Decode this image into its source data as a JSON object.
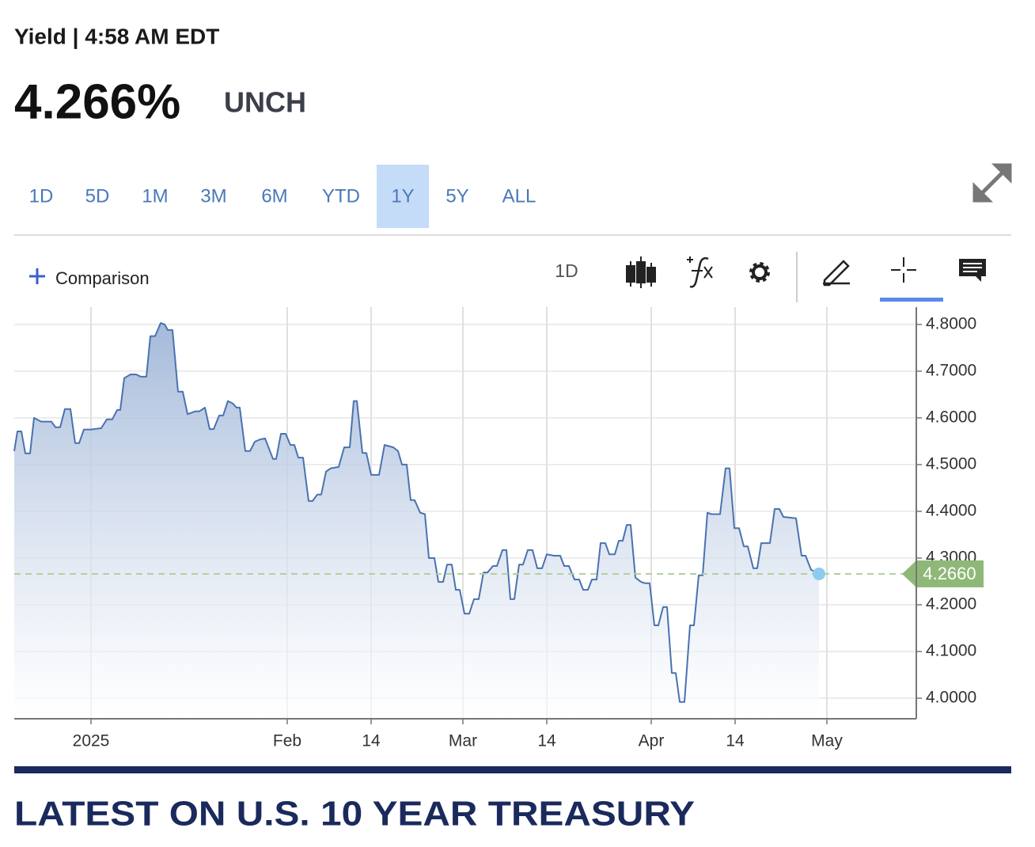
{
  "header": {
    "title": "Yield | 4:58 AM EDT",
    "price": "4.266%",
    "change": "UNCH"
  },
  "tabs": {
    "items": [
      "1D",
      "5D",
      "1M",
      "3M",
      "6M",
      "YTD",
      "1Y",
      "5Y",
      "ALL"
    ],
    "active": 6
  },
  "toolbar": {
    "comparison": "Comparison",
    "interval": "1D"
  },
  "section": {
    "heading": "LATEST ON U.S. 10 YEAR TREASURY"
  },
  "chart_data": {
    "type": "line",
    "color": "#4a72b0",
    "grid": true,
    "xlim": [
      0,
      114
    ],
    "xticks": [
      {
        "value": 9.7,
        "label": "2025"
      },
      {
        "value": 34.5,
        "label": "Feb"
      },
      {
        "value": 45.1,
        "label": "14"
      },
      {
        "value": 56.7,
        "label": "Mar"
      },
      {
        "value": 67.3,
        "label": "14"
      },
      {
        "value": 80.5,
        "label": "Apr"
      },
      {
        "value": 91.1,
        "label": "14"
      },
      {
        "value": 102.7,
        "label": "May"
      }
    ],
    "ylim": [
      3.956,
      4.837
    ],
    "yticks": [
      {
        "value": 4.0,
        "label": "4.0000"
      },
      {
        "value": 4.1,
        "label": "4.1000"
      },
      {
        "value": 4.2,
        "label": "4.2000"
      },
      {
        "value": 4.3,
        "label": "4.3000"
      },
      {
        "value": 4.4,
        "label": "4.4000"
      },
      {
        "value": 4.5,
        "label": "4.5000"
      },
      {
        "value": 4.6,
        "label": "4.6000"
      },
      {
        "value": 4.7,
        "label": "4.7000"
      },
      {
        "value": 4.8,
        "label": "4.8000"
      }
    ],
    "reference_line": {
      "value": 4.266,
      "label": "4.2660"
    },
    "x": [
      0,
      0.4,
      0.9,
      1.4,
      2.0,
      2.5,
      3.4,
      4.7,
      5.2,
      5.8,
      6.4,
      7.1,
      7.7,
      8.2,
      8.8,
      9.7,
      11.0,
      11.7,
      12.4,
      13.0,
      13.4,
      13.9,
      14.7,
      15.4,
      16.0,
      16.7,
      17.2,
      17.8,
      18.5,
      19.0,
      19.4,
      20.0,
      20.7,
      21.3,
      21.9,
      22.9,
      23.4,
      24.1,
      24.7,
      25.2,
      25.9,
      26.4,
      27.0,
      27.6,
      28.1,
      28.5,
      29.2,
      29.8,
      30.4,
      31.1,
      31.7,
      32.7,
      33.1,
      33.7,
      34.3,
      34.9,
      35.4,
      35.9,
      36.5,
      37.2,
      37.7,
      38.3,
      38.8,
      39.4,
      40.0,
      41.0,
      41.7,
      42.4,
      42.9,
      43.3,
      44.0,
      44.5,
      45.1,
      46.1,
      46.8,
      47.9,
      48.5,
      49.0,
      49.6,
      50.1,
      50.6,
      51.3,
      51.9,
      52.4,
      53.1,
      53.6,
      54.2,
      54.7,
      55.3,
      55.8,
      56.3,
      56.9,
      57.5,
      58.1,
      58.7,
      59.3,
      59.8,
      60.5,
      61.0,
      61.7,
      62.2,
      62.7,
      63.2,
      63.8,
      64.3,
      64.9,
      65.5,
      66.1,
      66.7,
      67.3,
      68.2,
      69.0,
      69.5,
      70.1,
      70.8,
      71.4,
      71.9,
      72.5,
      73.0,
      73.6,
      74.1,
      74.7,
      75.2,
      75.9,
      76.4,
      76.9,
      77.4,
      77.9,
      78.5,
      79.2,
      79.7,
      80.3,
      80.9,
      81.4,
      82.0,
      82.5,
      83.1,
      83.6,
      84.1,
      84.7,
      85.4,
      85.9,
      86.5,
      87.0,
      87.6,
      88.1,
      89.2,
      89.9,
      90.4,
      91.0,
      91.6,
      92.2,
      92.7,
      93.4,
      93.9,
      94.4,
      95.5,
      96.1,
      96.7,
      97.2,
      98.8,
      99.5,
      100.0,
      100.7,
      101.7
    ],
    "values": [
      4.529,
      4.571,
      4.571,
      4.524,
      4.524,
      4.6,
      4.592,
      4.592,
      4.58,
      4.58,
      4.619,
      4.619,
      4.546,
      4.546,
      4.575,
      4.575,
      4.578,
      4.597,
      4.597,
      4.617,
      4.617,
      4.685,
      4.693,
      4.693,
      4.688,
      4.688,
      4.775,
      4.775,
      4.803,
      4.8,
      4.788,
      4.788,
      4.656,
      4.656,
      4.608,
      4.614,
      4.614,
      4.622,
      4.576,
      4.576,
      4.605,
      4.605,
      4.636,
      4.631,
      4.622,
      4.622,
      4.529,
      4.529,
      4.549,
      4.554,
      4.556,
      4.512,
      4.512,
      4.566,
      4.566,
      4.542,
      4.542,
      4.515,
      4.515,
      4.422,
      4.422,
      4.436,
      4.436,
      4.485,
      4.492,
      4.495,
      4.537,
      4.537,
      4.636,
      4.636,
      4.525,
      4.525,
      4.478,
      4.478,
      4.542,
      4.537,
      4.529,
      4.5,
      4.5,
      4.424,
      4.424,
      4.397,
      4.394,
      4.3,
      4.3,
      4.249,
      4.249,
      4.286,
      4.286,
      4.232,
      4.232,
      4.181,
      4.181,
      4.212,
      4.212,
      4.269,
      4.269,
      4.283,
      4.283,
      4.317,
      4.317,
      4.212,
      4.212,
      4.286,
      4.286,
      4.317,
      4.317,
      4.278,
      4.278,
      4.308,
      4.305,
      4.305,
      4.283,
      4.283,
      4.254,
      4.254,
      4.232,
      4.232,
      4.254,
      4.254,
      4.332,
      4.332,
      4.308,
      4.308,
      4.337,
      4.337,
      4.371,
      4.371,
      4.258,
      4.249,
      4.246,
      4.246,
      4.156,
      4.156,
      4.195,
      4.195,
      4.054,
      4.054,
      3.992,
      3.992,
      4.156,
      4.156,
      4.263,
      4.263,
      4.397,
      4.394,
      4.394,
      4.492,
      4.492,
      4.364,
      4.364,
      4.325,
      4.325,
      4.278,
      4.278,
      4.332,
      4.332,
      4.405,
      4.405,
      4.388,
      4.385,
      4.305,
      4.305,
      4.275,
      4.266
    ]
  }
}
